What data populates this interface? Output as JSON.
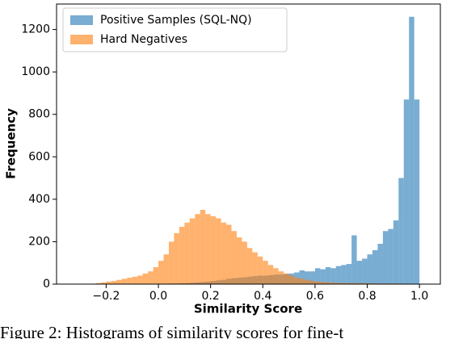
{
  "chart_data": {
    "type": "histogram",
    "xlabel": "Similarity Score",
    "ylabel": "Frequency",
    "caption": "Figure 2: Histograms of similarity scores for fine-t",
    "xlim": [
      -0.39,
      1.08
    ],
    "ylim": [
      0,
      1320
    ],
    "xticks": [
      {
        "value": -0.2,
        "label": "−0.2"
      },
      {
        "value": 0,
        "label": "0.0"
      },
      0.2,
      0.4,
      0.6,
      0.8,
      {
        "value": 1,
        "label": "1.0"
      }
    ],
    "yticks": [
      0,
      200,
      400,
      600,
      800,
      1000,
      1200
    ],
    "legend": "upper left",
    "alpha": 0.6,
    "series": [
      {
        "name": "Positive Samples (SQL-NQ)",
        "color": "#1f77b4",
        "bins": [
          0,
          0.02,
          0.04,
          0.06,
          0.08,
          0.1,
          0.12,
          0.14,
          0.16,
          0.18,
          0.2,
          0.22,
          0.24,
          0.26,
          0.28,
          0.3,
          0.32,
          0.34,
          0.36,
          0.38,
          0.4,
          0.42,
          0.44,
          0.46,
          0.48,
          0.5,
          0.52,
          0.54,
          0.56,
          0.58,
          0.6,
          0.62,
          0.64,
          0.66,
          0.68,
          0.7,
          0.72,
          0.74,
          0.76,
          0.78,
          0.8,
          0.82,
          0.84,
          0.86,
          0.88,
          0.9,
          0.92,
          0.94,
          0.96,
          0.98,
          1
        ],
        "values": [
          2,
          2,
          3,
          3,
          4,
          5,
          6,
          8,
          10,
          12,
          15,
          18,
          20,
          25,
          28,
          30,
          32,
          35,
          38,
          40,
          40,
          42,
          45,
          45,
          48,
          50,
          55,
          65,
          60,
          60,
          75,
          70,
          80,
          75,
          85,
          90,
          95,
          230,
          110,
          120,
          140,
          160,
          190,
          250,
          260,
          300,
          500,
          870,
          1260,
          870
        ]
      },
      {
        "name": "Hard Negatives",
        "color": "#ff7f0e",
        "bins": [
          -0.26,
          -0.24,
          -0.22,
          -0.2,
          -0.18,
          -0.16,
          -0.14,
          -0.12,
          -0.1,
          -0.08,
          -0.06,
          -0.04,
          -0.02,
          0,
          0.02,
          0.04,
          0.06,
          0.08,
          0.1,
          0.12,
          0.14,
          0.16,
          0.18,
          0.2,
          0.22,
          0.24,
          0.26,
          0.28,
          0.3,
          0.32,
          0.34,
          0.36,
          0.38,
          0.4,
          0.42,
          0.44,
          0.46,
          0.48,
          0.5,
          0.52,
          0.54,
          0.56,
          0.58,
          0.6,
          0.62,
          0.64,
          0.66,
          0.68,
          0.7,
          0.72,
          0.74,
          0.76,
          0.78,
          0.8,
          0.82,
          0.84,
          0.86,
          0.88,
          0.9,
          0.92,
          0.94,
          0.96,
          0.98,
          1
        ],
        "values": [
          2,
          5,
          8,
          12,
          15,
          20,
          25,
          30,
          35,
          40,
          50,
          60,
          80,
          110,
          140,
          200,
          240,
          270,
          290,
          310,
          330,
          350,
          330,
          320,
          310,
          290,
          280,
          250,
          220,
          200,
          170,
          150,
          130,
          110,
          90,
          75,
          60,
          50,
          40,
          30,
          25,
          20,
          15,
          12,
          10,
          8,
          7,
          6,
          5,
          5,
          5,
          4,
          4,
          4,
          3,
          3,
          3,
          3,
          3,
          2,
          2,
          2,
          1
        ]
      }
    ]
  }
}
